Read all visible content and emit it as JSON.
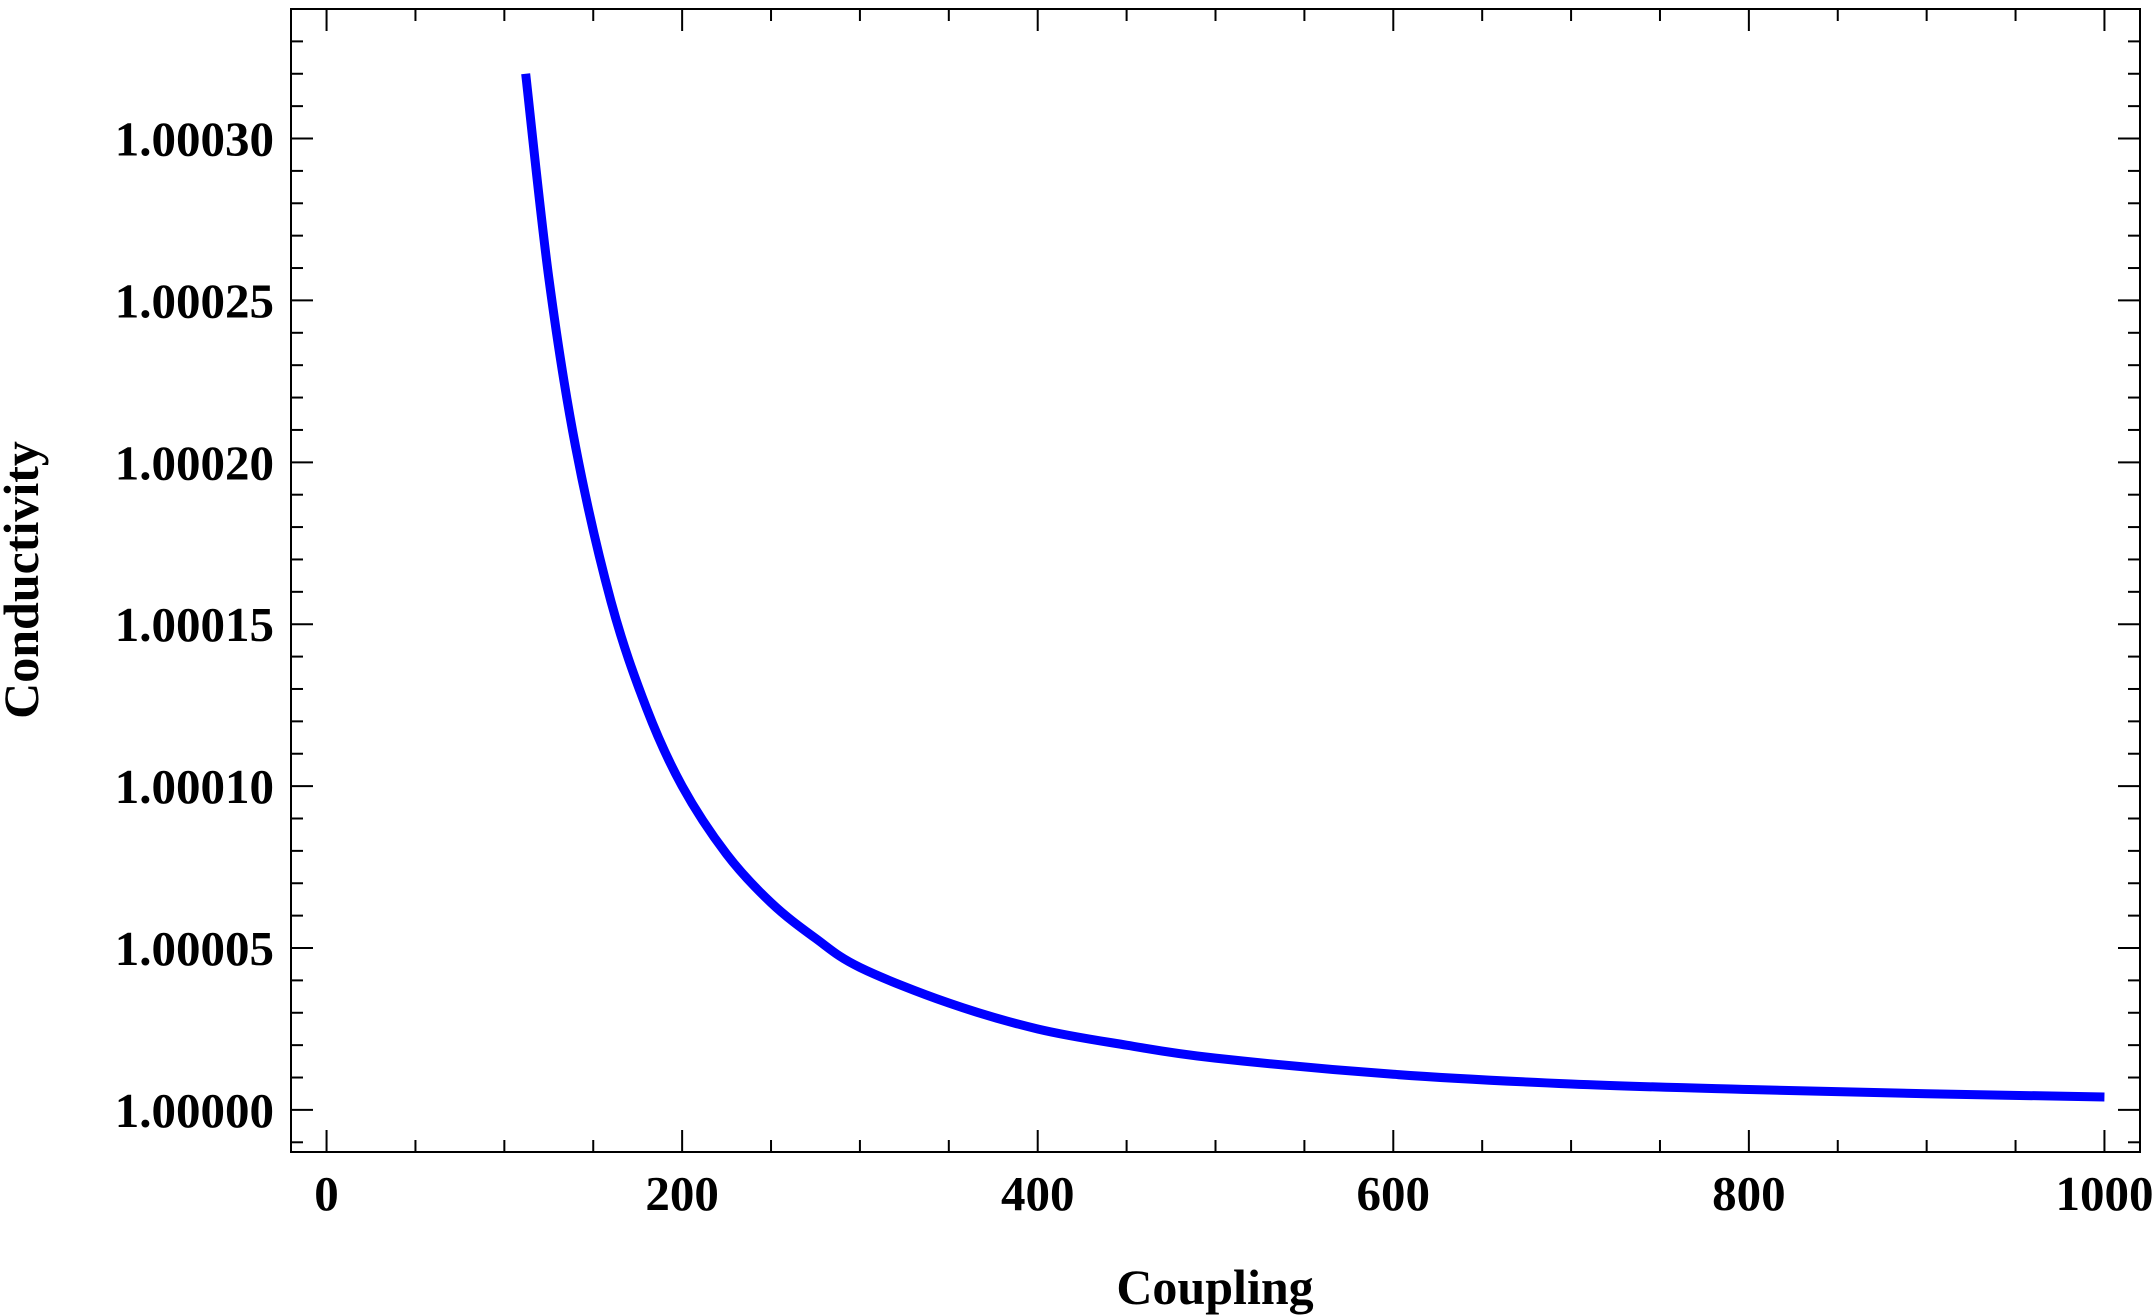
{
  "chart_data": {
    "type": "line",
    "title": "",
    "xlabel": "Coupling",
    "ylabel": "Conductivity",
    "xlim": [
      -20,
      1020
    ],
    "ylim": [
      0.999987,
      1.00034
    ],
    "xticks": [
      0,
      200,
      400,
      600,
      800,
      1000
    ],
    "xtick_labels": [
      "0",
      "200",
      "400",
      "600",
      "800",
      "1000"
    ],
    "yticks": [
      1.0,
      1.00005,
      1.0001,
      1.00015,
      1.0002,
      1.00025,
      1.0003
    ],
    "ytick_labels": [
      "1.00000",
      "1.00005",
      "1.00010",
      "1.00015",
      "1.00020",
      "1.00025",
      "1.00030"
    ],
    "grid": false,
    "legend": "none",
    "series": [
      {
        "color": "#0000ff",
        "x": [
          112,
          125,
          140,
          160,
          180,
          200,
          225,
          250,
          275,
          300,
          350,
          400,
          450,
          500,
          600,
          700,
          800,
          900,
          1000
        ],
        "y": [
          1.00032,
          1.000257,
          1.000205,
          1.000157,
          1.000124,
          1.0001,
          1.000079,
          1.000064,
          1.000053,
          1.000044,
          1.000033,
          1.000025,
          1.00002,
          1.000016,
          1.000011,
          1.000008,
          1.0000063,
          1.000005,
          1.000004
        ]
      }
    ]
  }
}
